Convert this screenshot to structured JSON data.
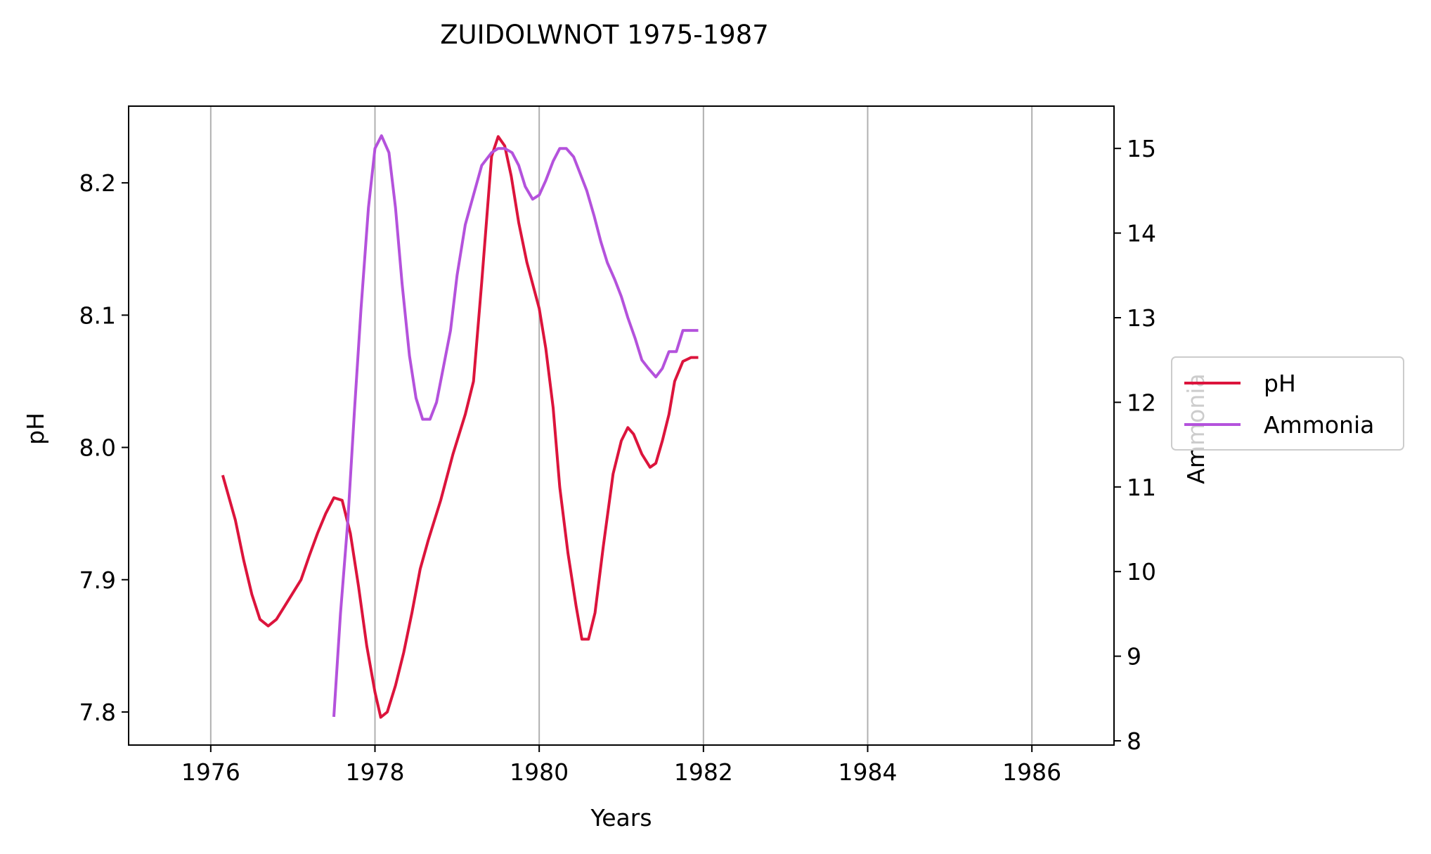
{
  "chart_data": {
    "type": "line",
    "title": "ZUIDOLWNOT 1975-1987",
    "xlabel": "Years",
    "ylabel": "pH",
    "y2label": "Ammonia",
    "xlim": [
      1975,
      1987
    ],
    "ylim": [
      7.775,
      8.258
    ],
    "y2lim": [
      7.95,
      15.5
    ],
    "x_ticks": [
      1976,
      1978,
      1980,
      1982,
      1984,
      1986
    ],
    "y_ticks": [
      7.8,
      7.9,
      8.0,
      8.1,
      8.2
    ],
    "y_tick_labels": [
      "7.8",
      "7.9",
      "8.0",
      "8.1",
      "8.2"
    ],
    "y2_ticks": [
      8,
      9,
      10,
      11,
      12,
      13,
      14,
      15
    ],
    "grid": "vertical",
    "legend_position": "right",
    "series": [
      {
        "name": "pH",
        "axis": "left",
        "color": "#dc143c",
        "x": [
          1976.15,
          1976.3,
          1976.4,
          1976.5,
          1976.6,
          1976.7,
          1976.8,
          1976.9,
          1977.0,
          1977.1,
          1977.2,
          1977.3,
          1977.4,
          1977.5,
          1977.6,
          1977.7,
          1977.8,
          1977.9,
          1978.0,
          1978.07,
          1978.15,
          1978.25,
          1978.35,
          1978.45,
          1978.55,
          1978.65,
          1978.8,
          1978.95,
          1979.1,
          1979.2,
          1979.3,
          1979.42,
          1979.5,
          1979.58,
          1979.66,
          1979.75,
          1979.85,
          1980.0,
          1980.08,
          1980.17,
          1980.25,
          1980.35,
          1980.45,
          1980.52,
          1980.6,
          1980.68,
          1980.78,
          1980.9,
          1981.0,
          1981.08,
          1981.15,
          1981.25,
          1981.35,
          1981.42,
          1981.5,
          1981.58,
          1981.65,
          1981.75,
          1981.85,
          1981.92
        ],
        "values": [
          7.978,
          7.945,
          7.915,
          7.889,
          7.87,
          7.865,
          7.87,
          7.88,
          7.89,
          7.9,
          7.918,
          7.935,
          7.95,
          7.962,
          7.96,
          7.935,
          7.895,
          7.85,
          7.815,
          7.796,
          7.8,
          7.82,
          7.845,
          7.875,
          7.908,
          7.93,
          7.96,
          7.995,
          8.025,
          8.05,
          8.125,
          8.22,
          8.235,
          8.228,
          8.205,
          8.17,
          8.14,
          8.105,
          8.075,
          8.03,
          7.97,
          7.92,
          7.88,
          7.855,
          7.855,
          7.875,
          7.925,
          7.98,
          8.005,
          8.015,
          8.01,
          7.995,
          7.985,
          7.988,
          8.005,
          8.025,
          8.05,
          8.065,
          8.068,
          8.068
        ]
      },
      {
        "name": "Ammonia",
        "axis": "right",
        "color": "#b452dc",
        "x": [
          1977.5,
          1977.58,
          1977.67,
          1977.75,
          1977.83,
          1977.92,
          1978.0,
          1978.08,
          1978.17,
          1978.25,
          1978.33,
          1978.42,
          1978.5,
          1978.58,
          1978.67,
          1978.75,
          1978.83,
          1978.92,
          1979.0,
          1979.1,
          1979.2,
          1979.3,
          1979.42,
          1979.5,
          1979.58,
          1979.67,
          1979.75,
          1979.83,
          1979.92,
          1980.0,
          1980.08,
          1980.17,
          1980.25,
          1980.33,
          1980.42,
          1980.5,
          1980.58,
          1980.67,
          1980.75,
          1980.83,
          1980.92,
          1981.0,
          1981.08,
          1981.17,
          1981.25,
          1981.33,
          1981.42,
          1981.5,
          1981.58,
          1981.67,
          1981.75,
          1981.83,
          1981.92
        ],
        "values": [
          8.3,
          9.5,
          10.6,
          11.9,
          13.1,
          14.3,
          15.0,
          15.15,
          14.95,
          14.3,
          13.4,
          12.55,
          12.05,
          11.8,
          11.8,
          12.0,
          12.4,
          12.85,
          13.5,
          14.1,
          14.45,
          14.8,
          14.95,
          15.0,
          15.0,
          14.95,
          14.8,
          14.55,
          14.4,
          14.45,
          14.62,
          14.85,
          15.0,
          15.0,
          14.9,
          14.7,
          14.5,
          14.2,
          13.9,
          13.65,
          13.45,
          13.25,
          13.0,
          12.75,
          12.5,
          12.4,
          12.3,
          12.4,
          12.6,
          12.6,
          12.85,
          12.85,
          12.85
        ]
      }
    ]
  }
}
